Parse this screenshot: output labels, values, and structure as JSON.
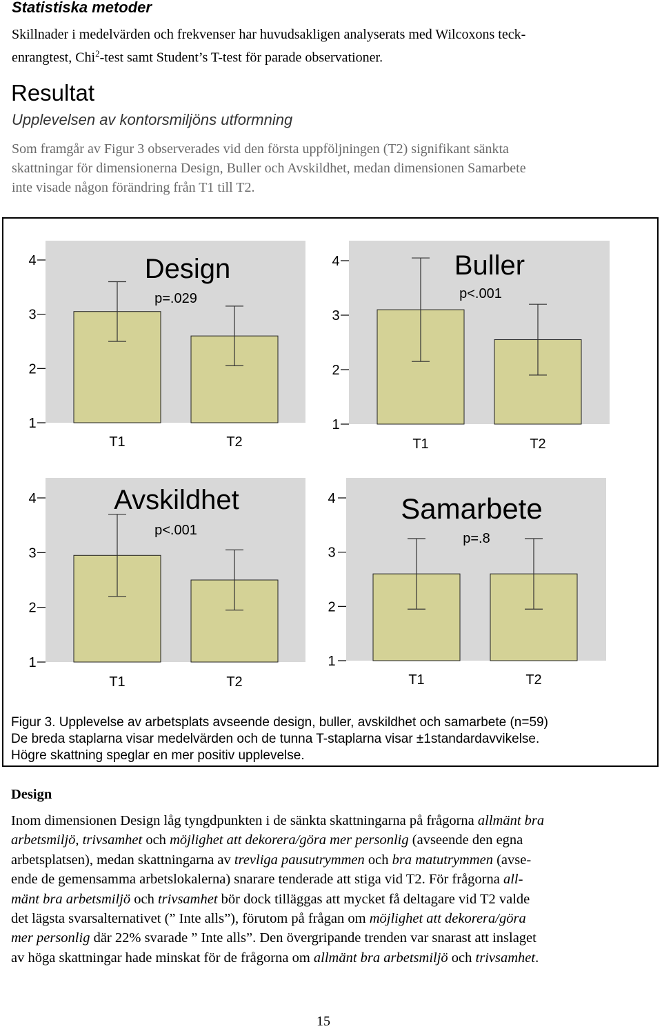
{
  "section_statistics": {
    "heading": "Statistiska metoder",
    "line1": "Skillnader i medelvärden och frekvenser har huvudsakligen analyserats med Wilcoxons teck-",
    "line2_a": "enrangtest, Chi",
    "line2_sup": "2",
    "line2_b": "-test samt Student’s T-test för parade observationer."
  },
  "results": {
    "heading": "Resultat",
    "subheading": "Upplevelsen av kontorsmiljöns utformning",
    "line1": "Som framgår av Figur 3 observerades vid den första uppföljningen (T2) signifikant sänkta",
    "line2": "skattningar för dimensionerna Design, Buller och Avskildhet, medan dimensionen Samarbete",
    "line3": "inte visade någon förändring från T1 till T2."
  },
  "figure": {
    "caption_line1": "Figur 3. Upplevelse av arbetsplats avseende design, buller, avskildhet och samarbete (n=59)",
    "caption_line2": "De breda staplarna visar medelvärden och de tunna T-staplarna visar ±1standardavvikelse.",
    "caption_line3": "Högre skattning speglar en mer positiv upplevelse.",
    "colors": {
      "panel_bg": "#d8d8d8",
      "bar_fill": "#d4d296",
      "bar_stroke": "#222222"
    }
  },
  "chart_data": [
    {
      "type": "bar",
      "title": "Design",
      "subtitle": "p=.029",
      "categories": [
        "T1",
        "T2"
      ],
      "values": [
        3.05,
        2.6
      ],
      "error": [
        0.55,
        0.55
      ],
      "y_ticks": [
        "4",
        "3",
        "2",
        "1"
      ],
      "ylim": [
        1,
        4
      ]
    },
    {
      "type": "bar",
      "title": "Buller",
      "subtitle": "p<.001",
      "categories": [
        "T1",
        "T2"
      ],
      "values": [
        3.1,
        2.55
      ],
      "error": [
        0.95,
        0.65
      ],
      "y_ticks": [
        "4",
        "3",
        "2",
        "1"
      ],
      "ylim": [
        1,
        4
      ]
    },
    {
      "type": "bar",
      "title": "Avskildhet",
      "subtitle": "p<.001",
      "categories": [
        "T1",
        "T2"
      ],
      "values": [
        2.95,
        2.5
      ],
      "error": [
        0.75,
        0.55
      ],
      "y_ticks": [
        "4",
        "3",
        "2",
        "1"
      ],
      "ylim": [
        1,
        4
      ]
    },
    {
      "type": "bar",
      "title": "Samarbete",
      "subtitle": "p=.8",
      "categories": [
        "T1",
        "T2"
      ],
      "values": [
        2.6,
        2.6
      ],
      "error": [
        0.65,
        0.65
      ],
      "y_ticks": [
        "4",
        "3",
        "2",
        "1"
      ],
      "ylim": [
        1,
        4
      ]
    }
  ],
  "design_section": {
    "heading": "Design",
    "l1a": "Inom dimensionen Design låg tyngdpunkten i de sänkta skattningarna på frågorna ",
    "l1i": "allmänt bra",
    "l2i1": "arbetsmiljö",
    "l2a": ", ",
    "l2i2": "trivsamhet",
    "l2b": " och ",
    "l2i3": "möjlighet att dekorera/göra mer personlig",
    "l2c": " (avseende den egna",
    "l3a": "arbetsplatsen), medan skattningarna av ",
    "l3i1": "trevliga pausutrymmen",
    "l3b": " och ",
    "l3i2": "bra matutrymmen",
    "l3c": " (avse-",
    "l4a": "ende de gemensamma arbetslokalerna) snarare tenderade att stiga vid T2. För frågorna ",
    "l4i": "all-",
    "l5i1": "mänt bra arbetsmiljö",
    "l5a": " och ",
    "l5i2": "trivsamhet",
    "l5b": " bör dock tilläggas att mycket få deltagare vid T2 valde",
    "l6a": "det lägsta svarsalternativet (” Inte alls”), förutom på frågan om ",
    "l6i": "möjlighet att dekorera/göra",
    "l7i": "mer personlig",
    "l7a": " där 22% svarade ” Inte alls”. Den övergripande trenden var snarast att inslaget",
    "l8a": "av höga skattningar hade minskat för de frågorna om ",
    "l8i1": "allmänt bra arbetsmiljö",
    "l8b": " och ",
    "l8i2": "trivsamhet",
    "l8c": "."
  },
  "page_number": "15"
}
